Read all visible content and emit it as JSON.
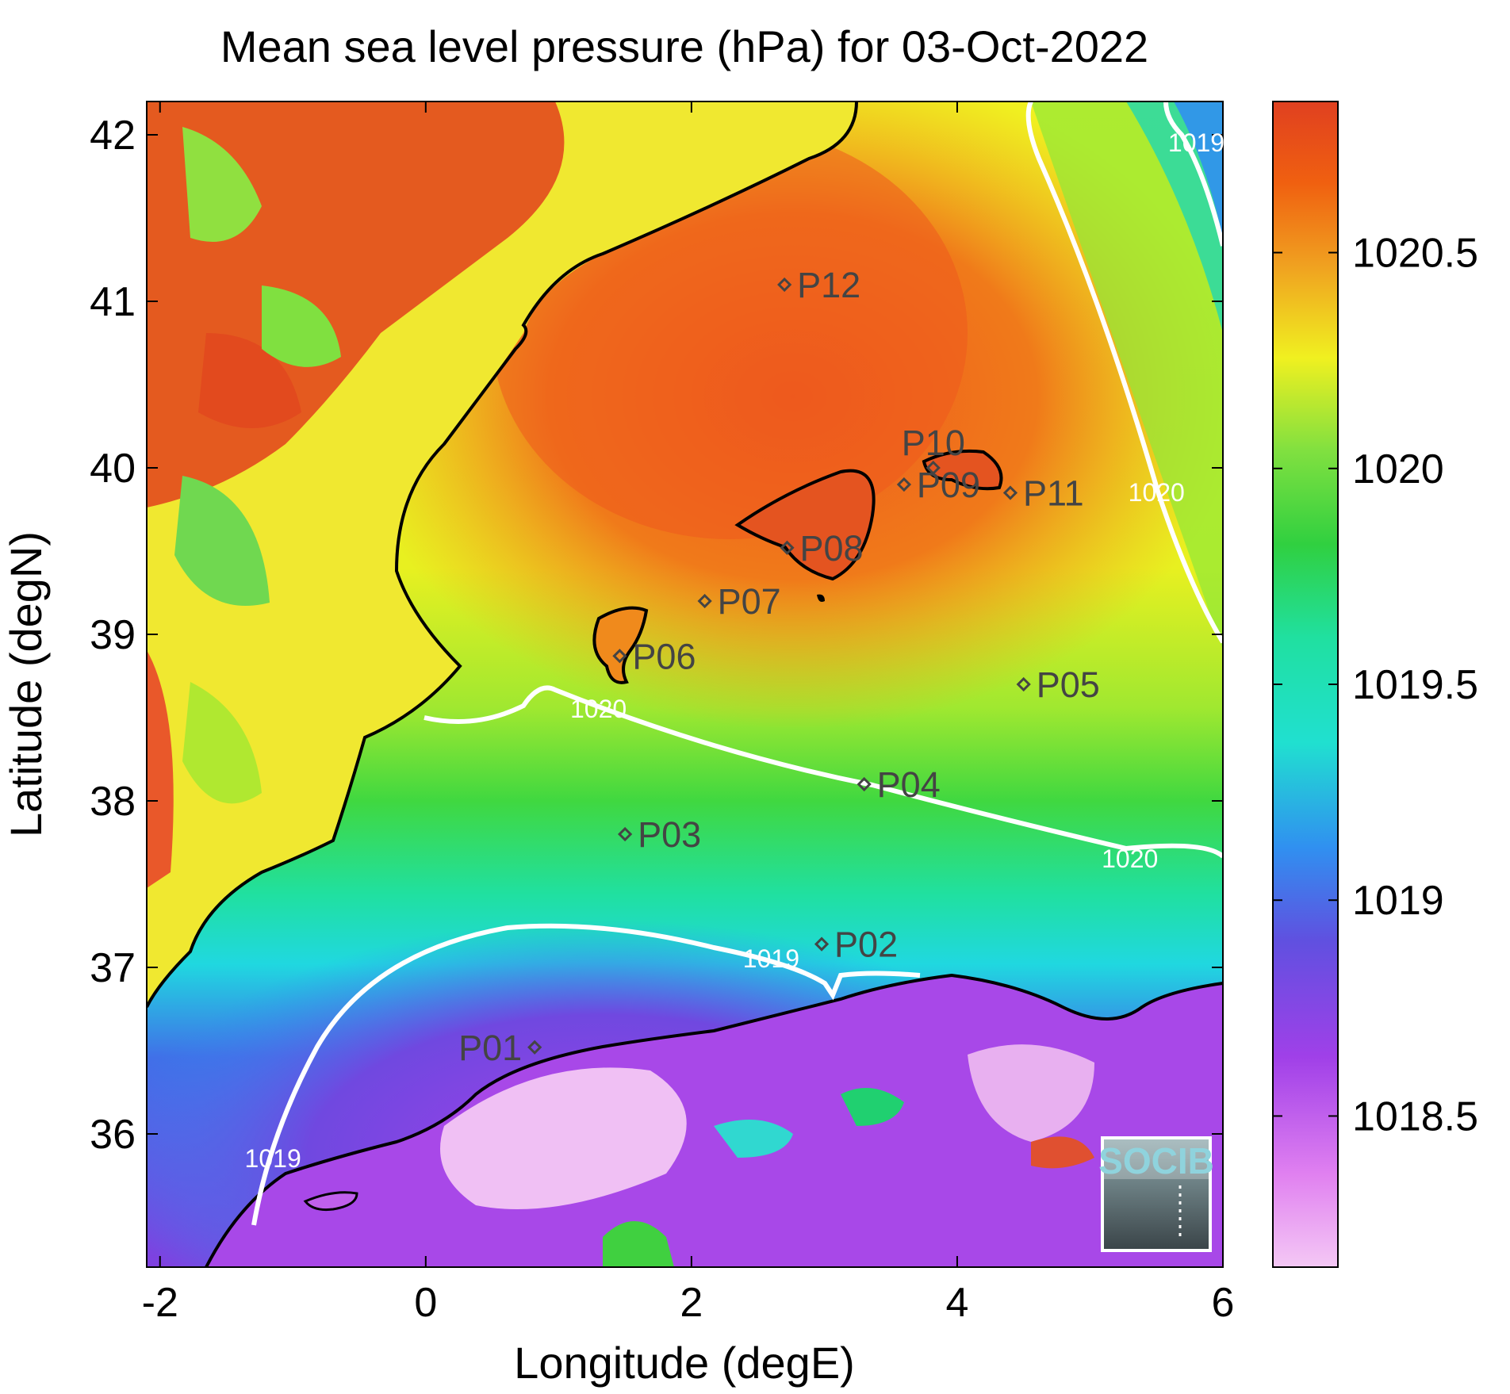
{
  "title": "Mean sea level pressure (hPa) for 03-Oct-2022",
  "map": {
    "xlabel": "Longitude (degE)",
    "ylabel": "Latitude (degN)",
    "lon_range": [
      -2.1,
      6.0
    ],
    "lat_range": [
      35.2,
      42.2
    ],
    "x_ticks": [
      {
        "value": -2,
        "label": "-2"
      },
      {
        "value": 0,
        "label": "0"
      },
      {
        "value": 2,
        "label": "2"
      },
      {
        "value": 4,
        "label": "4"
      },
      {
        "value": 6,
        "label": "6"
      }
    ],
    "y_ticks": [
      {
        "value": 36,
        "label": "36"
      },
      {
        "value": 37,
        "label": "37"
      },
      {
        "value": 38,
        "label": "38"
      },
      {
        "value": 39,
        "label": "39"
      },
      {
        "value": 40,
        "label": "40"
      },
      {
        "value": 41,
        "label": "41"
      },
      {
        "value": 42,
        "label": "42"
      }
    ]
  },
  "colorbar": {
    "range": [
      1018.15,
      1020.85
    ],
    "ticks": [
      {
        "value": 1018.5,
        "label": "1018.5"
      },
      {
        "value": 1019,
        "label": "1019"
      },
      {
        "value": 1019.5,
        "label": "1019.5"
      },
      {
        "value": 1020,
        "label": "1020"
      },
      {
        "value": 1020.5,
        "label": "1020.5"
      }
    ]
  },
  "contour_labels": [
    {
      "text": "1019",
      "lon": 5.8,
      "lat": 41.9
    },
    {
      "text": "1020",
      "lon": 5.5,
      "lat": 39.8
    },
    {
      "text": "1020",
      "lon": 1.3,
      "lat": 38.5
    },
    {
      "text": "1020",
      "lon": 5.3,
      "lat": 37.6
    },
    {
      "text": "1019",
      "lon": 2.6,
      "lat": 37.0
    },
    {
      "text": "1019",
      "lon": -1.15,
      "lat": 35.8
    }
  ],
  "stations": [
    {
      "id": "P01",
      "lon": 0.82,
      "lat": 36.52
    },
    {
      "id": "P02",
      "lon": 2.98,
      "lat": 37.14
    },
    {
      "id": "P03",
      "lon": 1.5,
      "lat": 37.8
    },
    {
      "id": "P04",
      "lon": 3.3,
      "lat": 38.1
    },
    {
      "id": "P05",
      "lon": 4.5,
      "lat": 38.7
    },
    {
      "id": "P06",
      "lon": 1.46,
      "lat": 38.87
    },
    {
      "id": "P07",
      "lon": 2.1,
      "lat": 39.2
    },
    {
      "id": "P08",
      "lon": 2.72,
      "lat": 39.52
    },
    {
      "id": "P09",
      "lon": 3.6,
      "lat": 39.9
    },
    {
      "id": "P10",
      "lon": 3.82,
      "lat": 40.0
    },
    {
      "id": "P11",
      "lon": 4.4,
      "lat": 39.85
    },
    {
      "id": "P12",
      "lon": 2.7,
      "lat": 41.1
    }
  ],
  "logo": {
    "text": "SOCIB"
  }
}
